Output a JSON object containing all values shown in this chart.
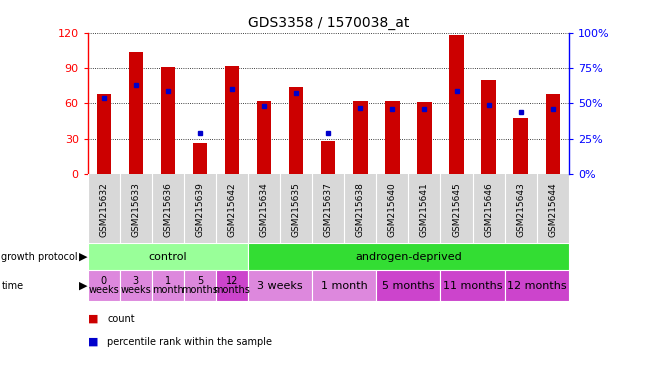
{
  "title": "GDS3358 / 1570038_at",
  "samples": [
    "GSM215632",
    "GSM215633",
    "GSM215636",
    "GSM215639",
    "GSM215642",
    "GSM215634",
    "GSM215635",
    "GSM215637",
    "GSM215638",
    "GSM215640",
    "GSM215641",
    "GSM215645",
    "GSM215646",
    "GSM215643",
    "GSM215644"
  ],
  "count_values": [
    68,
    104,
    91,
    26,
    92,
    62,
    74,
    28,
    62,
    62,
    61,
    118,
    80,
    48,
    68
  ],
  "percentile_values": [
    54,
    63,
    59,
    29,
    60,
    48,
    57,
    29,
    47,
    46,
    46,
    59,
    49,
    44,
    46
  ],
  "ylim_left": [
    0,
    120
  ],
  "ylim_right": [
    0,
    100
  ],
  "yticks_left": [
    0,
    30,
    60,
    90,
    120
  ],
  "yticks_right": [
    0,
    25,
    50,
    75,
    100
  ],
  "bar_color": "#cc0000",
  "percentile_color": "#0000cc",
  "protocol_groups": [
    {
      "label": "control",
      "color": "#99ff99",
      "start": 0,
      "end": 5
    },
    {
      "label": "androgen-deprived",
      "color": "#33dd33",
      "start": 5,
      "end": 15
    }
  ],
  "time_groups": [
    {
      "label": "0\nweeks",
      "color": "#dd88dd",
      "start": 0,
      "end": 1
    },
    {
      "label": "3\nweeks",
      "color": "#dd88dd",
      "start": 1,
      "end": 2
    },
    {
      "label": "1\nmonth",
      "color": "#dd88dd",
      "start": 2,
      "end": 3
    },
    {
      "label": "5\nmonths",
      "color": "#dd88dd",
      "start": 3,
      "end": 4
    },
    {
      "label": "12\nmonths",
      "color": "#cc44cc",
      "start": 4,
      "end": 5
    },
    {
      "label": "3 weeks",
      "color": "#dd88dd",
      "start": 5,
      "end": 7
    },
    {
      "label": "1 month",
      "color": "#dd88dd",
      "start": 7,
      "end": 9
    },
    {
      "label": "5 months",
      "color": "#cc44cc",
      "start": 9,
      "end": 11
    },
    {
      "label": "11 months",
      "color": "#cc44cc",
      "start": 11,
      "end": 13
    },
    {
      "label": "12 months",
      "color": "#cc44cc",
      "start": 13,
      "end": 15
    }
  ],
  "legend_items": [
    {
      "label": "count",
      "color": "#cc0000"
    },
    {
      "label": "percentile rank within the sample",
      "color": "#0000cc"
    }
  ],
  "label_left": "growth protocol",
  "label_time": "time",
  "xtick_bg": "#d8d8d8"
}
